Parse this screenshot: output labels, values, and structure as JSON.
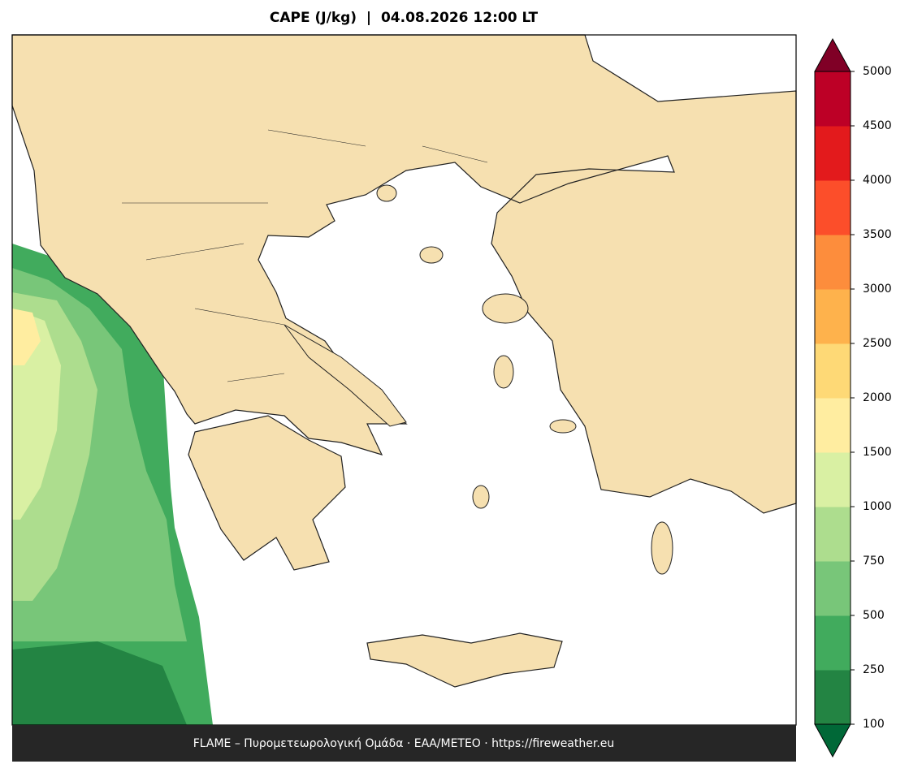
{
  "title": "CAPE (J/kg)  |  04.08.2026 12:00 LT",
  "footer": "FLAME – Πυρομετεωρολογική Ομάδα · ΕΑΑ/METEO · https://fireweather.eu",
  "colorbar": {
    "levels": [
      100,
      250,
      500,
      750,
      1000,
      1500,
      2000,
      2500,
      3000,
      3500,
      4000,
      4500,
      5000
    ],
    "colors": [
      "#238443",
      "#41ab5d",
      "#78c679",
      "#addd8e",
      "#d9f0a3",
      "#ffeda0",
      "#fed976",
      "#feb24c",
      "#fd8d3c",
      "#fc4e2a",
      "#e31a1c",
      "#bd0026"
    ],
    "under_color": "#006837",
    "over_color": "#800026"
  }
}
